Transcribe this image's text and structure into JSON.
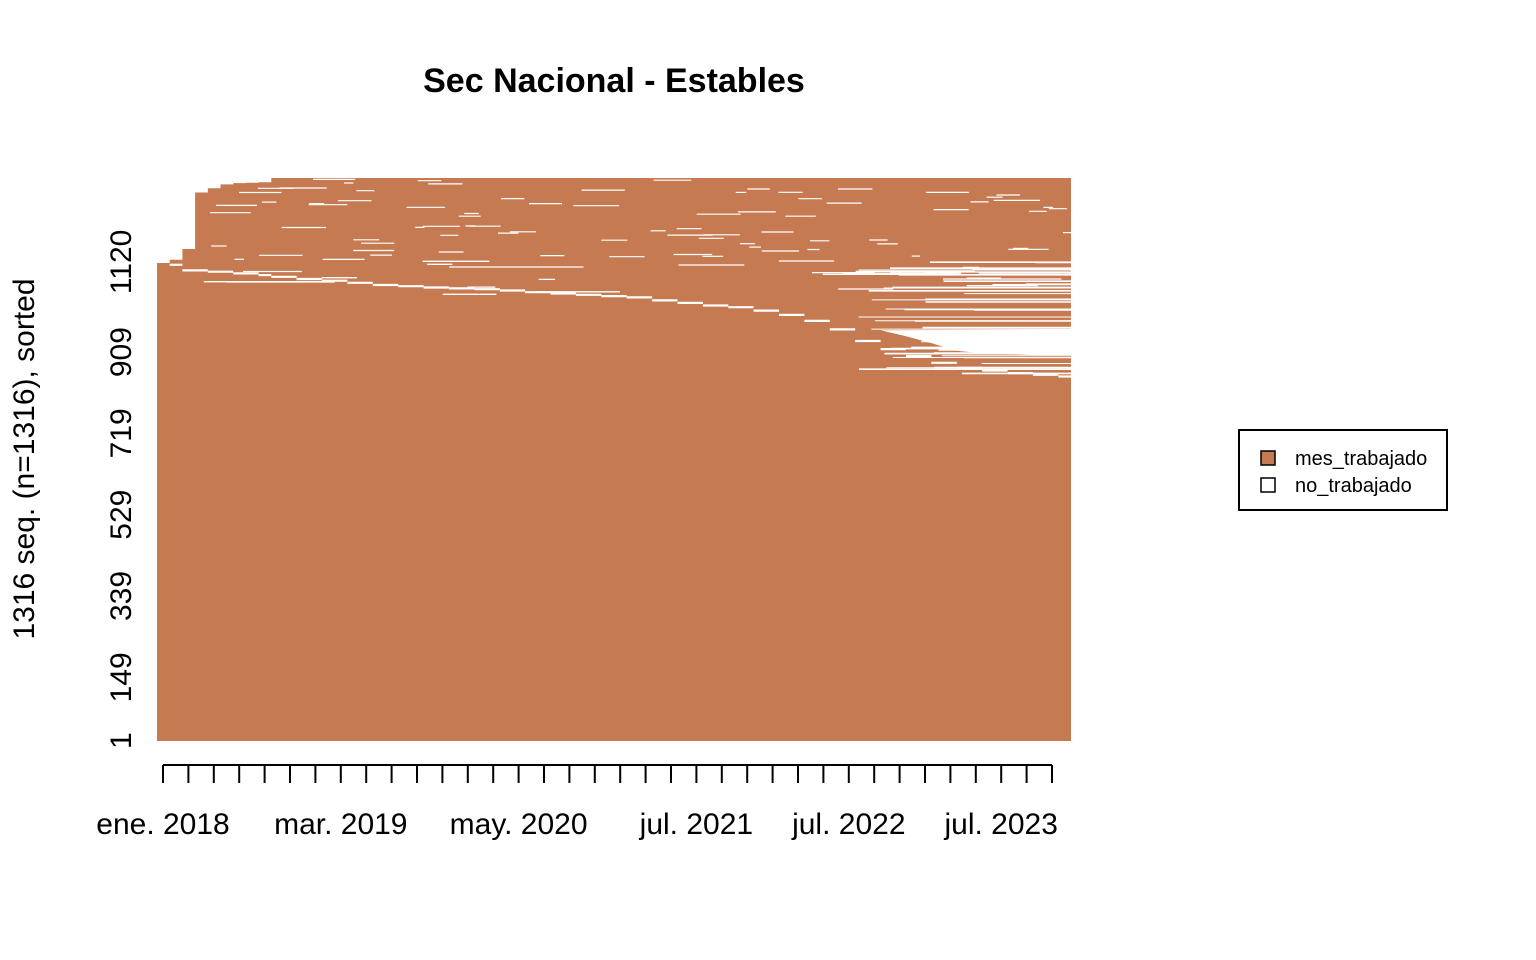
{
  "chart_data": {
    "type": "sequence-index-plot",
    "title": "Sec Nacional - Estables",
    "ylabel": "1316 seq. (n=1316), sorted",
    "xlabel": "",
    "n_sequences": 1316,
    "n_months": 72,
    "x_start": "ene. 2018",
    "x_end": "dic. 2023",
    "x_tick_labels": [
      "ene. 2018",
      "mar. 2019",
      "may. 2020",
      "jul. 2021",
      "jul. 2022",
      "jul. 2023"
    ],
    "x_tick_label_month_index": [
      1,
      15,
      29,
      43,
      55,
      67
    ],
    "x_minor_tick_every_months": 2,
    "x_minor_tick_count": 36,
    "y_tick_labels": [
      "1",
      "149",
      "339",
      "529",
      "719",
      "909",
      "1120"
    ],
    "y_tick_values": [
      1,
      149,
      339,
      529,
      719,
      909,
      1120
    ],
    "states": [
      {
        "name": "mes_trabajado",
        "color": "#C67A52"
      },
      {
        "name": "no_trabajado",
        "color": "#FFFFFF"
      }
    ],
    "legend": {
      "position": "right",
      "entries": [
        "mes_trabajado",
        "no_trabajado"
      ]
    },
    "upper_boundary_month_index": [
      1,
      2,
      3,
      4,
      5,
      6,
      7,
      8,
      9,
      10,
      12,
      13,
      14,
      15,
      16,
      18,
      20,
      22,
      24,
      26,
      28,
      30,
      32,
      34,
      36,
      38,
      40,
      42,
      44,
      46,
      48,
      50,
      52,
      54,
      56,
      58,
      60,
      62,
      64,
      66,
      68,
      70,
      72
    ],
    "upper_boundary_sequence_count": [
      1120,
      1125,
      1150,
      1282,
      1292,
      1301,
      1304,
      1305,
      1306,
      1316,
      1316,
      1316,
      1316,
      1316,
      1316,
      1316,
      1316,
      1316,
      1316,
      1316,
      1316,
      1316,
      1316,
      1316,
      1316,
      1316,
      1316,
      1316,
      1316,
      1316,
      1316,
      1316,
      1316,
      1316,
      1316,
      1316,
      1316,
      1316,
      1316,
      1316,
      1316,
      1316,
      1316
    ],
    "full_employment_boundary_month_index": [
      1,
      2,
      3,
      5,
      7,
      9,
      10,
      12,
      14,
      16,
      18,
      20,
      22,
      24,
      26,
      28,
      30,
      32,
      34,
      36,
      38,
      40,
      42,
      44,
      46,
      48,
      50,
      52,
      54,
      56,
      58,
      60,
      62,
      64,
      66,
      68,
      70,
      72
    ],
    "full_employment_boundary_sequence_count": [
      1120,
      1113,
      1100,
      1097,
      1093,
      1089,
      1085,
      1080,
      1076,
      1071,
      1066,
      1063,
      1060,
      1058,
      1056,
      1053,
      1049,
      1046,
      1043,
      1040,
      1037,
      1030,
      1024,
      1018,
      1014,
      1006,
      996,
      982,
      962,
      935,
      916,
      900,
      884,
      872,
      866,
      860,
      856,
      852
    ]
  }
}
